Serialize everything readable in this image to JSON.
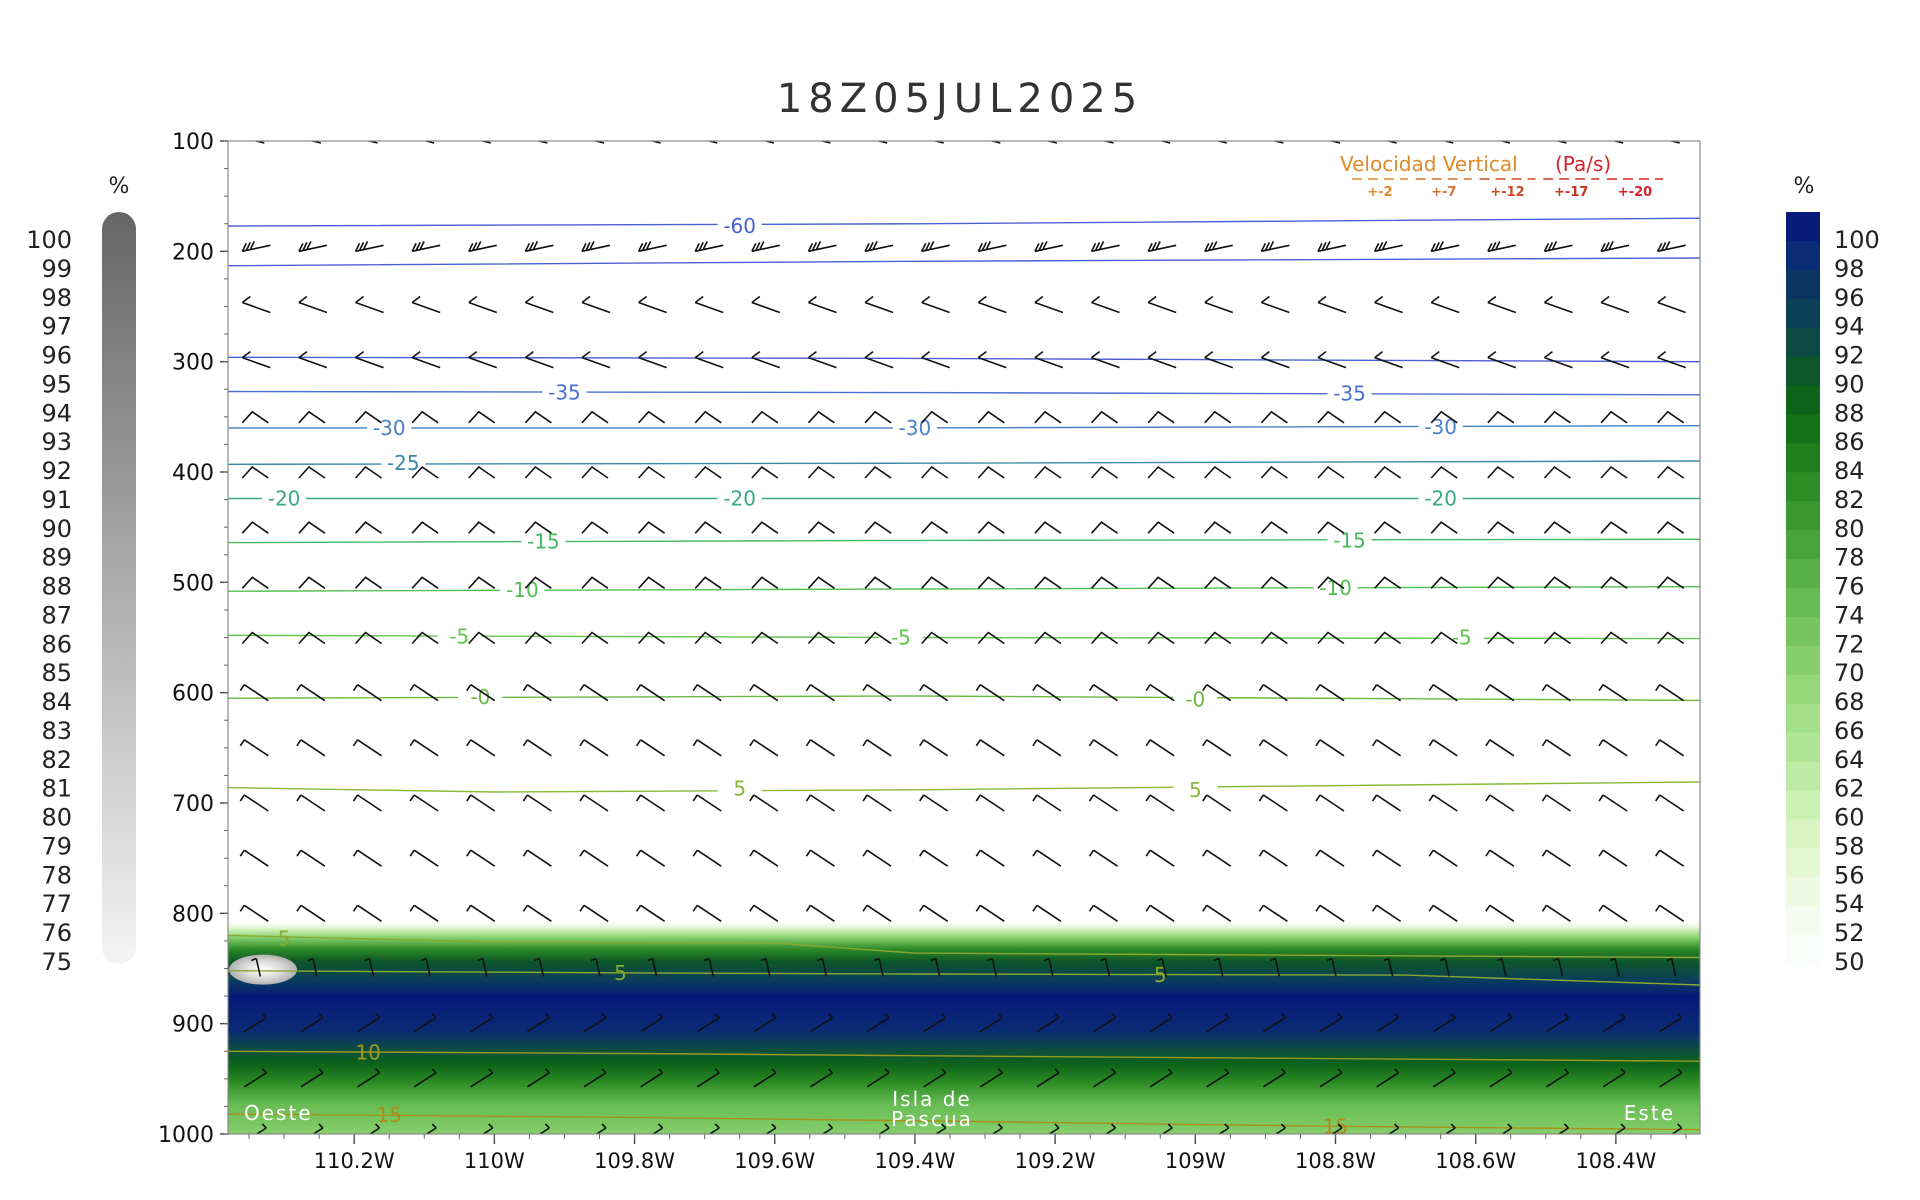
{
  "chart_data": {
    "type": "heatmap",
    "title": "18Z05JUL2025",
    "xlim": [
      -110.38,
      -108.28
    ],
    "ylim": [
      1000,
      100
    ],
    "y_ticks": [
      100,
      200,
      300,
      400,
      500,
      600,
      700,
      800,
      900,
      1000
    ],
    "x_ticks": [
      {
        "value": -110.2,
        "label": "110.2W"
      },
      {
        "value": -110.0,
        "label": "110W"
      },
      {
        "value": -109.8,
        "label": "109.8W"
      },
      {
        "value": -109.6,
        "label": "109.6W"
      },
      {
        "value": -109.4,
        "label": "109.4W"
      },
      {
        "value": -109.2,
        "label": "109.2W"
      },
      {
        "value": -109.0,
        "label": "109W"
      },
      {
        "value": -108.8,
        "label": "108.8W"
      },
      {
        "value": -108.6,
        "label": "108.6W"
      },
      {
        "value": -108.4,
        "label": "108.4W"
      }
    ],
    "annotations": {
      "left": "Oeste",
      "center": [
        "Isla de",
        "Pascua"
      ],
      "right": "Este"
    },
    "legend": {
      "title": "Velocidad Vertical",
      "unit": "(Pa/s)",
      "entries": [
        {
          "label": "+-2",
          "color": "#e08a2a"
        },
        {
          "label": "+-7",
          "color": "#d9722a"
        },
        {
          "label": "+-12",
          "color": "#cf4a22"
        },
        {
          "label": "+-17",
          "color": "#c4321d"
        },
        {
          "label": "+-20",
          "color": "#d6222a"
        }
      ]
    },
    "left_colorbar": {
      "unit": "%",
      "labels": [
        "100",
        "99",
        "98",
        "97",
        "96",
        "95",
        "94",
        "93",
        "92",
        "91",
        "90",
        "89",
        "88",
        "87",
        "86",
        "85",
        "84",
        "83",
        "82",
        "81",
        "80",
        "79",
        "78",
        "77",
        "76",
        "75"
      ],
      "color_top": "#666666",
      "color_bottom": "#f4f4f4"
    },
    "right_colorbar": {
      "unit": "%",
      "labels": [
        "100",
        "98",
        "96",
        "94",
        "92",
        "90",
        "88",
        "86",
        "84",
        "82",
        "80",
        "78",
        "76",
        "74",
        "72",
        "70",
        "68",
        "66",
        "64",
        "62",
        "60",
        "58",
        "56",
        "54",
        "52",
        "50"
      ],
      "colors": [
        "#071a7a",
        "#0a2b75",
        "#0b3563",
        "#0c4059",
        "#0d4a43",
        "#0c5628",
        "#0d6418",
        "#147116",
        "#1f7f1d",
        "#2c8c25",
        "#3a982f",
        "#49a43b",
        "#58b047",
        "#67bb53",
        "#77c55f",
        "#86cf6c",
        "#94d87a",
        "#a2df88",
        "#b0e596",
        "#bdeba5",
        "#cbf0b4",
        "#d8f4c3",
        "#e4f8d3",
        "#eefae2",
        "#f5fcef",
        "#fafefa"
      ]
    },
    "contours": [
      {
        "level": "-60",
        "color": "#4a5fd0",
        "points": [
          [
            -110.38,
            177
          ],
          [
            -109.4,
            175
          ],
          [
            -108.28,
            170
          ]
        ],
        "labels": [
          [
            -109.65,
            177
          ]
        ]
      },
      {
        "level": "",
        "color": "#4a5fd0",
        "points": [
          [
            -110.38,
            213
          ],
          [
            -109.4,
            209
          ],
          [
            -108.28,
            206
          ]
        ],
        "labels": []
      },
      {
        "level": "",
        "color": "#4a5fd0",
        "points": [
          [
            -110.38,
            296
          ],
          [
            -109.4,
            297
          ],
          [
            -108.28,
            300
          ]
        ],
        "labels": []
      },
      {
        "level": "-35",
        "color": "#4a6fd0",
        "points": [
          [
            -110.38,
            327
          ],
          [
            -109.4,
            328
          ],
          [
            -108.28,
            330
          ]
        ],
        "labels": [
          [
            -109.9,
            328
          ],
          [
            -108.78,
            329
          ]
        ]
      },
      {
        "level": "-30",
        "color": "#4a80c8",
        "points": [
          [
            -110.38,
            360
          ],
          [
            -109.4,
            360
          ],
          [
            -108.28,
            358
          ]
        ],
        "labels": [
          [
            -110.15,
            360
          ],
          [
            -109.4,
            360
          ],
          [
            -108.65,
            359
          ]
        ]
      },
      {
        "level": "-25",
        "color": "#3a8aa8",
        "points": [
          [
            -110.38,
            393
          ],
          [
            -109.4,
            392
          ],
          [
            -108.28,
            390
          ]
        ],
        "labels": [
          [
            -110.13,
            392
          ]
        ]
      },
      {
        "level": "-20",
        "color": "#3aa880",
        "points": [
          [
            -110.38,
            424
          ],
          [
            -109.4,
            424
          ],
          [
            -108.28,
            424
          ]
        ],
        "labels": [
          [
            -110.3,
            424
          ],
          [
            -109.65,
            424
          ],
          [
            -108.65,
            424
          ]
        ]
      },
      {
        "level": "-15",
        "color": "#46b860",
        "points": [
          [
            -110.38,
            464
          ],
          [
            -109.4,
            462
          ],
          [
            -108.28,
            461
          ]
        ],
        "labels": [
          [
            -109.93,
            463
          ],
          [
            -108.78,
            462
          ]
        ]
      },
      {
        "level": "-10",
        "color": "#50c050",
        "points": [
          [
            -110.38,
            508
          ],
          [
            -109.4,
            506
          ],
          [
            -108.28,
            504
          ]
        ],
        "labels": [
          [
            -109.96,
            507
          ],
          [
            -108.8,
            505
          ]
        ]
      },
      {
        "level": "-5",
        "color": "#5ec64a",
        "points": [
          [
            -110.38,
            548
          ],
          [
            -109.4,
            550
          ],
          [
            -108.28,
            551
          ]
        ],
        "labels": [
          [
            -110.05,
            549
          ],
          [
            -109.42,
            550
          ],
          [
            -108.62,
            550
          ]
        ]
      },
      {
        "level": "-0",
        "color": "#6ab840",
        "points": [
          [
            -110.38,
            605
          ],
          [
            -109.4,
            603
          ],
          [
            -108.28,
            607
          ]
        ],
        "labels": [
          [
            -110.02,
            604
          ],
          [
            -109.0,
            606
          ]
        ]
      },
      {
        "level": "5",
        "color": "#8ab838",
        "points": [
          [
            -110.38,
            686
          ],
          [
            -110.0,
            690
          ],
          [
            -109.4,
            688
          ],
          [
            -108.28,
            681
          ]
        ],
        "labels": [
          [
            -109.65,
            687
          ],
          [
            -109.0,
            688
          ]
        ]
      },
      {
        "level": "5",
        "color": "#8aa830",
        "points": [
          [
            -110.38,
            820
          ],
          [
            -110.0,
            826
          ],
          [
            -109.6,
            827
          ],
          [
            -109.4,
            836
          ],
          [
            -108.28,
            840
          ]
        ],
        "labels": [
          [
            -110.3,
            823
          ]
        ]
      },
      {
        "level": "5",
        "color": "#8aa830",
        "points": [
          [
            -110.38,
            852
          ],
          [
            -109.8,
            854
          ],
          [
            -109.4,
            855
          ],
          [
            -108.7,
            856
          ],
          [
            -108.28,
            865
          ]
        ],
        "labels": [
          [
            -109.82,
            854
          ],
          [
            -109.05,
            856
          ]
        ]
      },
      {
        "level": "10",
        "color": "#9a9a20",
        "points": [
          [
            -110.38,
            925
          ],
          [
            -109.8,
            927
          ],
          [
            -109.4,
            929
          ],
          [
            -108.28,
            934
          ]
        ],
        "labels": [
          [
            -110.18,
            926
          ]
        ]
      },
      {
        "level": "15",
        "color": "#a89018",
        "points": [
          [
            -110.38,
            982
          ],
          [
            -109.8,
            985
          ],
          [
            -109.4,
            988
          ],
          [
            -108.8,
            993
          ],
          [
            -108.28,
            996
          ]
        ],
        "labels": [
          [
            -110.15,
            983
          ],
          [
            -108.8,
            993
          ]
        ]
      }
    ],
    "humidity_field": [
      {
        "top": 805,
        "bottom": 1000,
        "x0": -110.38,
        "x1": -108.28
      }
    ],
    "wind_barbs": {
      "columns": 26,
      "levels": [
        100,
        200,
        250,
        300,
        350,
        400,
        450,
        500,
        550,
        600,
        650,
        700,
        750,
        800,
        850,
        900,
        950,
        1000
      ]
    }
  }
}
